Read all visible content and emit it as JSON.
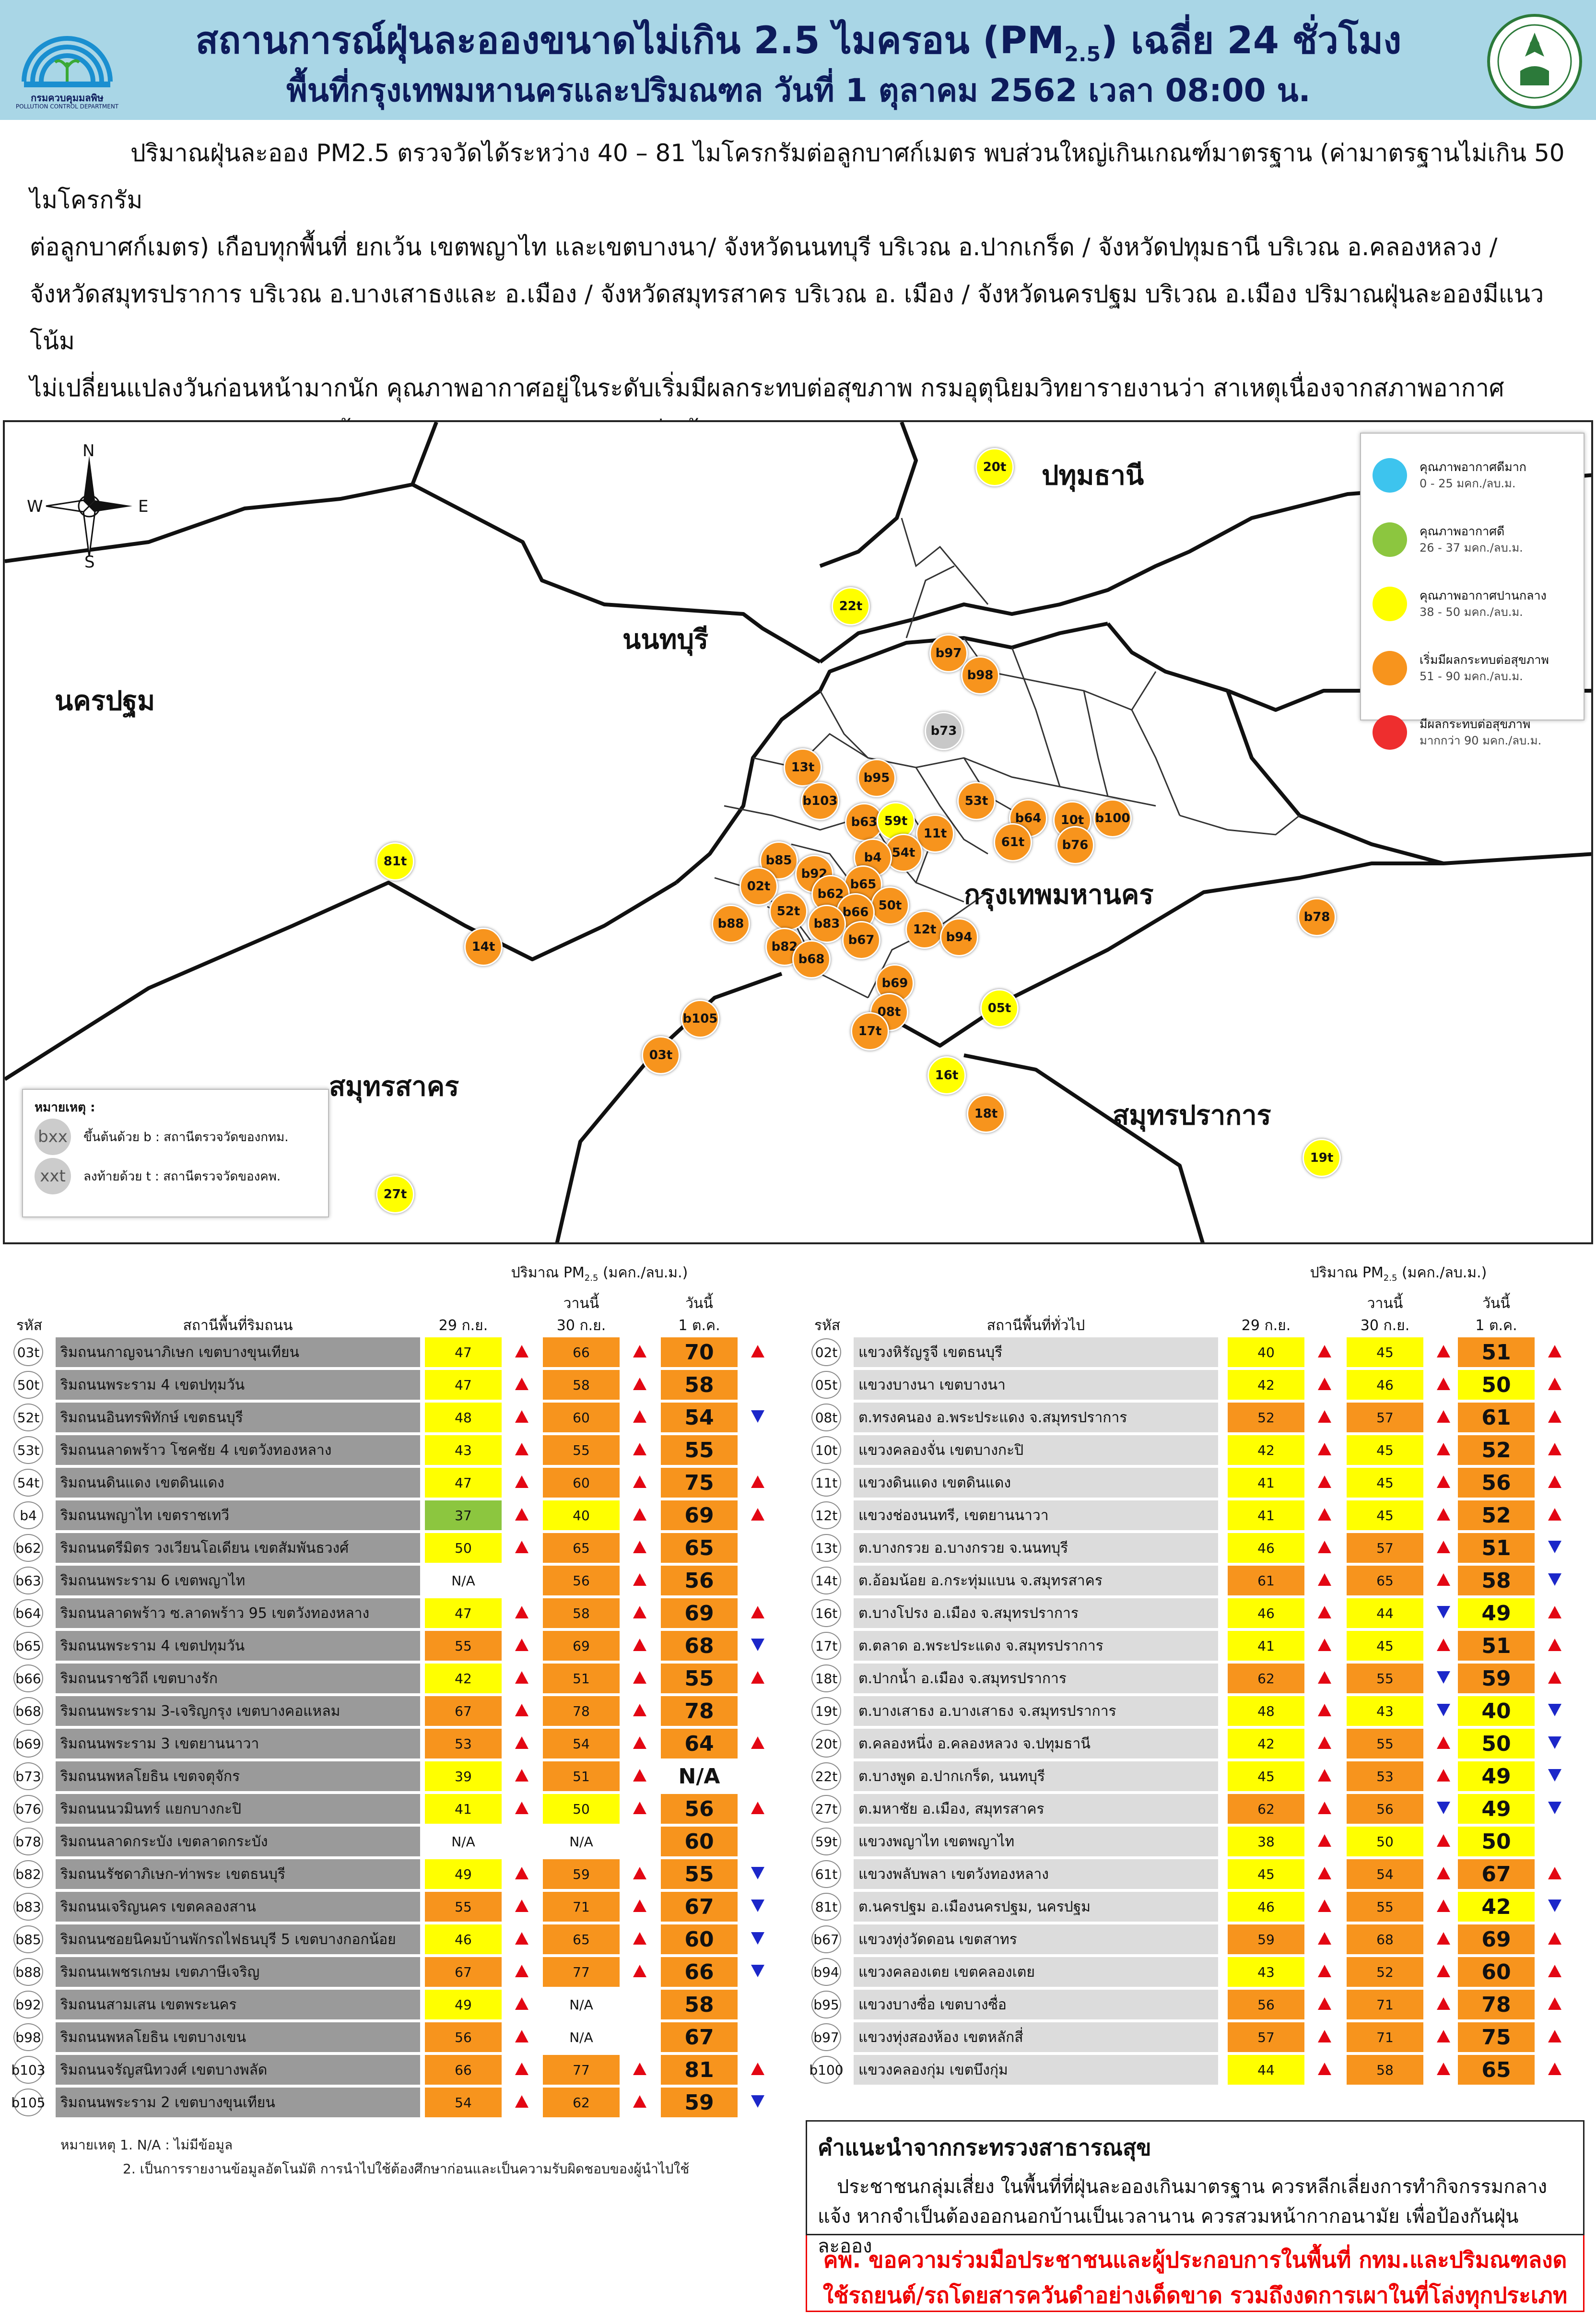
{
  "header": {
    "title_pre": "สถานการณ์ฝุ่นละอองขนาดไม่เกิน 2.5 ไมครอน (PM",
    "title_sub": "2.5",
    "title_post": ") เฉลี่ย 24 ชั่วโมง",
    "subtitle": "พื้นที่กรุงเทพมหานครและปริมณฑล วันที่ 1 ตุลาคม 2562 เวลา 08:00 น.",
    "left_logo_text": "กรมควบคุมมลพิษ",
    "left_logo_subtext": "POLLUTION CONTROL DEPARTMENT"
  },
  "intro_lines": [
    "ปริมาณฝุ่นละออง PM2.5 ตรวจวัดได้ระหว่าง 40 – 81 ไมโครกรัมต่อลูกบาศก์เมตร พบส่วนใหญ่เกินเกณฑ์มาตรฐาน (ค่ามาตรฐานไม่เกิน 50 ไมโครกรัม",
    "ต่อลูกบาศก์เมตร) เกือบทุกพื้นที่ ยกเว้น เขตพญาไท และเขตบางนา/ จังหวัดนนทบุรี บริเวณ อ.ปากเกร็ด / จังหวัดปทุมธานี บริเวณ อ.คลองหลวง /",
    "จังหวัดสมุทรปราการ บริเวณ อ.บางเสาธงและ อ.เมือง / จังหวัดสมุทรสาคร บริเวณ อ. เมือง / จังหวัดนครปฐม บริเวณ อ.เมือง ปริมาณฝุ่นละอองมีแนวโน้ม",
    "ไม่เปลี่ยนแปลงวันก่อนหน้ามากนัก คุณภาพอากาศอยู่ในระดับเริ่มมีผลกระทบต่อสุขภาพ กรมอุตุนิยมวิทยารายงานว่า สาเหตุเนื่องจากสภาพอากาศ",
    "ช่วงเช้าลมสงบ อากาศมีความชื้นสูง จึงทำให้ฝุ่นละอองสะสมเพิ่มขึ้น"
  ],
  "map": {
    "compass": {
      "n": "N",
      "s": "S",
      "e": "E",
      "w": "W"
    },
    "labels": {
      "pathum": "ปทุมธานี",
      "nonthaburi": "นนทบุรี",
      "nakhonpathom": "นครปฐม",
      "bangkok": "กรุงเทพมหานคร",
      "samutsakhon": "สมุทรสาคร",
      "samutprakan": "สมุทรปราการ"
    },
    "legend": [
      {
        "label": "คุณภาพอากาศดีมาก",
        "range": "0 - 25 มคก./ลบ.ม.",
        "color": "#3dc4ee"
      },
      {
        "label": "คุณภาพอากาศดี",
        "range": "26 - 37 มคก./ลบ.ม.",
        "color": "#8cc63f"
      },
      {
        "label": "คุณภาพอากาศปานกลาง",
        "range": "38 - 50 มคก./ลบ.ม.",
        "color": "#ffff00"
      },
      {
        "label": "เริ่มมีผลกระทบต่อสุขภาพ",
        "range": "51 - 90 มคก./ลบ.ม.",
        "color": "#f7941d"
      },
      {
        "label": "มีผลกระทบต่อสุขภาพ",
        "range": "มากกว่า 90 มคก./ลบ.ม.",
        "color": "#ee2e2e"
      }
    ],
    "note": {
      "title": "หมายเหตุ :",
      "items": [
        {
          "sym": "bxx",
          "text": "ขึ้นต้นด้วย b : สถานีตรวจวัดของกทม."
        },
        {
          "sym": "xxt",
          "text": "ลงท้ายด้วย t : สถานีตรวจวัดของคพ."
        }
      ]
    },
    "stations": [
      {
        "id": "20t",
        "level": "yellow"
      },
      {
        "id": "22t",
        "level": "yellow"
      },
      {
        "id": "b97",
        "level": "orange"
      },
      {
        "id": "b98",
        "level": "orange"
      },
      {
        "id": "b73",
        "level": "gray"
      },
      {
        "id": "13t",
        "level": "orange"
      },
      {
        "id": "b95",
        "level": "orange"
      },
      {
        "id": "b103",
        "level": "orange"
      },
      {
        "id": "53t",
        "level": "orange"
      },
      {
        "id": "b63",
        "level": "orange"
      },
      {
        "id": "59t",
        "level": "yellow"
      },
      {
        "id": "11t",
        "level": "orange"
      },
      {
        "id": "b64",
        "level": "orange"
      },
      {
        "id": "10t",
        "level": "orange"
      },
      {
        "id": "b100",
        "level": "orange"
      },
      {
        "id": "61t",
        "level": "orange"
      },
      {
        "id": "b76",
        "level": "orange"
      },
      {
        "id": "54t",
        "level": "orange"
      },
      {
        "id": "b4",
        "level": "orange"
      },
      {
        "id": "b85",
        "level": "orange"
      },
      {
        "id": "b92",
        "level": "orange"
      },
      {
        "id": "02t",
        "level": "orange"
      },
      {
        "id": "b65",
        "level": "orange"
      },
      {
        "id": "b62",
        "level": "orange"
      },
      {
        "id": "50t",
        "level": "orange"
      },
      {
        "id": "52t",
        "level": "orange"
      },
      {
        "id": "b66",
        "level": "orange"
      },
      {
        "id": "b88",
        "level": "orange"
      },
      {
        "id": "b83",
        "level": "orange"
      },
      {
        "id": "12t",
        "level": "orange"
      },
      {
        "id": "b94",
        "level": "orange"
      },
      {
        "id": "b67",
        "level": "orange"
      },
      {
        "id": "b82",
        "level": "orange"
      },
      {
        "id": "b68",
        "level": "orange"
      },
      {
        "id": "b78",
        "level": "orange"
      },
      {
        "id": "81t",
        "level": "yellow"
      },
      {
        "id": "14t",
        "level": "orange"
      },
      {
        "id": "b69",
        "level": "orange"
      },
      {
        "id": "08t",
        "level": "orange"
      },
      {
        "id": "05t",
        "level": "yellow"
      },
      {
        "id": "b105",
        "level": "orange"
      },
      {
        "id": "17t",
        "level": "orange"
      },
      {
        "id": "03t",
        "level": "orange"
      },
      {
        "id": "16t",
        "level": "yellow"
      },
      {
        "id": "18t",
        "level": "orange"
      },
      {
        "id": "19t",
        "level": "yellow"
      },
      {
        "id": "27t",
        "level": "yellow"
      }
    ]
  },
  "table_head": {
    "unit_pre": "ปริมาณ PM",
    "unit_sub": "2.5",
    "unit_post": " (มคก./ลบ.ม.)",
    "code": "รหัส",
    "left_station": "สถานีพื้นที่ริมถนน",
    "right_station": "สถานีพื้นที่ทั่วไป",
    "d1": "29 ก.ย.",
    "d2_top": "วานนี้",
    "d2": "30 ก.ย.",
    "d3_top": "วันนี้",
    "d3": "1 ต.ค."
  },
  "left_rows": [
    {
      "code": "03t",
      "name": "ริมถนนกาญจนาภิเษก เขตบางขุนเทียน",
      "v1": "47",
      "c1": "y",
      "t1": "up",
      "v2": "66",
      "c2": "o",
      "t2": "up",
      "v3": "70",
      "c3": "o",
      "t3": "up"
    },
    {
      "code": "50t",
      "name": "ริมถนนพระราม 4 เขตปทุมวัน",
      "v1": "47",
      "c1": "y",
      "t1": "up",
      "v2": "58",
      "c2": "o",
      "t2": "up",
      "v3": "58",
      "c3": "o",
      "t3": ""
    },
    {
      "code": "52t",
      "name": "ริมถนนอินทรพิทักษ์ เขตธนบุรี",
      "v1": "48",
      "c1": "y",
      "t1": "up",
      "v2": "60",
      "c2": "o",
      "t2": "up",
      "v3": "54",
      "c3": "o",
      "t3": "dn"
    },
    {
      "code": "53t",
      "name": "ริมถนนลาดพร้าว โชคชัย 4 เขตวังทองหลาง",
      "v1": "43",
      "c1": "y",
      "t1": "up",
      "v2": "55",
      "c2": "o",
      "t2": "up",
      "v3": "55",
      "c3": "o",
      "t3": ""
    },
    {
      "code": "54t",
      "name": "ริมถนนดินแดง เขตดินแดง",
      "v1": "47",
      "c1": "y",
      "t1": "up",
      "v2": "60",
      "c2": "o",
      "t2": "up",
      "v3": "75",
      "c3": "o",
      "t3": "up"
    },
    {
      "code": "b4",
      "name": "ริมถนนพญาไท เขตราชเทวี",
      "v1": "37",
      "c1": "g",
      "t1": "up",
      "v2": "40",
      "c2": "y",
      "t2": "up",
      "v3": "69",
      "c3": "o",
      "t3": "up"
    },
    {
      "code": "b62",
      "name": "ริมถนนตรีมิตร วงเวียนโอเดียน เขตสัมพันธวงศ์",
      "v1": "50",
      "c1": "y",
      "t1": "up",
      "v2": "65",
      "c2": "o",
      "t2": "up",
      "v3": "65",
      "c3": "o",
      "t3": ""
    },
    {
      "code": "b63",
      "name": "ริมถนนพระราม 6 เขตพญาไท",
      "v1": "N/A",
      "c1": "n",
      "t1": "",
      "v2": "56",
      "c2": "o",
      "t2": "up",
      "v3": "56",
      "c3": "o",
      "t3": ""
    },
    {
      "code": "b64",
      "name": "ริมถนนลาดพร้าว ซ.ลาดพร้าว 95 เขตวังทองหลาง",
      "v1": "47",
      "c1": "y",
      "t1": "up",
      "v2": "58",
      "c2": "o",
      "t2": "up",
      "v3": "69",
      "c3": "o",
      "t3": "up"
    },
    {
      "code": "b65",
      "name": "ริมถนนพระราม 4 เขตปทุมวัน",
      "v1": "55",
      "c1": "o",
      "t1": "up",
      "v2": "69",
      "c2": "o",
      "t2": "up",
      "v3": "68",
      "c3": "o",
      "t3": "dn"
    },
    {
      "code": "b66",
      "name": "ริมถนนราชวิถี เขตบางรัก",
      "v1": "42",
      "c1": "y",
      "t1": "up",
      "v2": "51",
      "c2": "o",
      "t2": "up",
      "v3": "55",
      "c3": "o",
      "t3": "up"
    },
    {
      "code": "b68",
      "name": "ริมถนนพระราม 3-เจริญกรุง เขตบางคอแหลม",
      "v1": "67",
      "c1": "o",
      "t1": "up",
      "v2": "78",
      "c2": "o",
      "t2": "up",
      "v3": "78",
      "c3": "o",
      "t3": ""
    },
    {
      "code": "b69",
      "name": "ริมถนนพระราม 3 เขตยานนาวา",
      "v1": "53",
      "c1": "o",
      "t1": "up",
      "v2": "54",
      "c2": "o",
      "t2": "up",
      "v3": "64",
      "c3": "o",
      "t3": "up"
    },
    {
      "code": "b73",
      "name": "ริมถนนพหลโยธิน เขตจตุจักร",
      "v1": "39",
      "c1": "y",
      "t1": "up",
      "v2": "51",
      "c2": "o",
      "t2": "up",
      "v3": "N/A",
      "c3": "n",
      "t3": ""
    },
    {
      "code": "b76",
      "name": "ริมถนนนวมินทร์ แยกบางกะปิ",
      "v1": "41",
      "c1": "y",
      "t1": "up",
      "v2": "50",
      "c2": "y",
      "t2": "up",
      "v3": "56",
      "c3": "o",
      "t3": "up"
    },
    {
      "code": "b78",
      "name": "ริมถนนลาดกระบัง เขตลาดกระบัง",
      "v1": "N/A",
      "c1": "n",
      "t1": "",
      "v2": "N/A",
      "c2": "n",
      "t2": "",
      "v3": "60",
      "c3": "o",
      "t3": ""
    },
    {
      "code": "b82",
      "name": "ริมถนนรัชดาภิเษก-ท่าพระ เขตธนบุรี",
      "v1": "49",
      "c1": "y",
      "t1": "up",
      "v2": "59",
      "c2": "o",
      "t2": "up",
      "v3": "55",
      "c3": "o",
      "t3": "dn"
    },
    {
      "code": "b83",
      "name": "ริมถนนเจริญนคร เขตคลองสาน",
      "v1": "55",
      "c1": "o",
      "t1": "up",
      "v2": "71",
      "c2": "o",
      "t2": "up",
      "v3": "67",
      "c3": "o",
      "t3": "dn"
    },
    {
      "code": "b85",
      "name": "ริมถนนซอยนิคมบ้านพักรถไฟธนบุรี 5 เขตบางกอกน้อย",
      "v1": "46",
      "c1": "y",
      "t1": "up",
      "v2": "65",
      "c2": "o",
      "t2": "up",
      "v3": "60",
      "c3": "o",
      "t3": "dn"
    },
    {
      "code": "b88",
      "name": "ริมถนนเพชรเกษม เขตภาษีเจริญ",
      "v1": "67",
      "c1": "o",
      "t1": "up",
      "v2": "77",
      "c2": "o",
      "t2": "up",
      "v3": "66",
      "c3": "o",
      "t3": "dn"
    },
    {
      "code": "b92",
      "name": "ริมถนนสามเสน เขตพระนคร",
      "v1": "49",
      "c1": "y",
      "t1": "up",
      "v2": "N/A",
      "c2": "n",
      "t2": "",
      "v3": "58",
      "c3": "o",
      "t3": ""
    },
    {
      "code": "b98",
      "name": "ริมถนนพหลโยธิน เขตบางเขน",
      "v1": "56",
      "c1": "o",
      "t1": "up",
      "v2": "N/A",
      "c2": "n",
      "t2": "",
      "v3": "67",
      "c3": "o",
      "t3": ""
    },
    {
      "code": "b103",
      "name": "ริมถนนจรัญสนิทวงศ์ เขตบางพลัด",
      "v1": "66",
      "c1": "o",
      "t1": "up",
      "v2": "77",
      "c2": "o",
      "t2": "up",
      "v3": "81",
      "c3": "o",
      "t3": "up"
    },
    {
      "code": "b105",
      "name": "ริมถนนพระราม 2 เขตบางขุนเทียน",
      "v1": "54",
      "c1": "o",
      "t1": "up",
      "v2": "62",
      "c2": "o",
      "t2": "up",
      "v3": "59",
      "c3": "o",
      "t3": "dn"
    }
  ],
  "right_rows": [
    {
      "code": "02t",
      "name": "แขวงหิรัญรูจี เขตธนบุรี",
      "v1": "40",
      "c1": "y",
      "t1": "up",
      "v2": "45",
      "c2": "y",
      "t2": "up",
      "v3": "51",
      "c3": "o",
      "t3": "up"
    },
    {
      "code": "05t",
      "name": "แขวงบางนา เขตบางนา",
      "v1": "42",
      "c1": "y",
      "t1": "up",
      "v2": "46",
      "c2": "y",
      "t2": "up",
      "v3": "50",
      "c3": "y",
      "t3": "up"
    },
    {
      "code": "08t",
      "name": "ต.ทรงคนอง อ.พระประแดง จ.สมุทรปราการ",
      "v1": "52",
      "c1": "o",
      "t1": "up",
      "v2": "57",
      "c2": "o",
      "t2": "up",
      "v3": "61",
      "c3": "o",
      "t3": "up"
    },
    {
      "code": "10t",
      "name": "แขวงคลองจั่น เขตบางกะปิ",
      "v1": "42",
      "c1": "y",
      "t1": "up",
      "v2": "45",
      "c2": "y",
      "t2": "up",
      "v3": "52",
      "c3": "o",
      "t3": "up"
    },
    {
      "code": "11t",
      "name": "แขวงดินแดง เขตดินแดง",
      "v1": "41",
      "c1": "y",
      "t1": "up",
      "v2": "45",
      "c2": "y",
      "t2": "up",
      "v3": "56",
      "c3": "o",
      "t3": "up"
    },
    {
      "code": "12t",
      "name": "แขวงช่องนนทรี, เขตยานนาวา",
      "v1": "41",
      "c1": "y",
      "t1": "up",
      "v2": "45",
      "c2": "y",
      "t2": "up",
      "v3": "52",
      "c3": "o",
      "t3": "up"
    },
    {
      "code": "13t",
      "name": "ต.บางกรวย อ.บางกรวย จ.นนทบุรี",
      "v1": "46",
      "c1": "y",
      "t1": "up",
      "v2": "57",
      "c2": "o",
      "t2": "up",
      "v3": "51",
      "c3": "o",
      "t3": "dn"
    },
    {
      "code": "14t",
      "name": "ต.อ้อมน้อย อ.กระทุ่มแบน จ.สมุทรสาคร",
      "v1": "61",
      "c1": "o",
      "t1": "up",
      "v2": "65",
      "c2": "o",
      "t2": "up",
      "v3": "58",
      "c3": "o",
      "t3": "dn"
    },
    {
      "code": "16t",
      "name": "ต.บางโปรง อ.เมือง จ.สมุทรปราการ",
      "v1": "46",
      "c1": "y",
      "t1": "up",
      "v2": "44",
      "c2": "y",
      "t2": "dn",
      "v3": "49",
      "c3": "y",
      "t3": "up"
    },
    {
      "code": "17t",
      "name": "ต.ตลาด อ.พระประแดง จ.สมุทรปราการ",
      "v1": "41",
      "c1": "y",
      "t1": "up",
      "v2": "45",
      "c2": "y",
      "t2": "up",
      "v3": "51",
      "c3": "o",
      "t3": "up"
    },
    {
      "code": "18t",
      "name": "ต.ปากน้ำ อ.เมือง จ.สมุทรปราการ",
      "v1": "62",
      "c1": "o",
      "t1": "up",
      "v2": "55",
      "c2": "o",
      "t2": "dn",
      "v3": "59",
      "c3": "o",
      "t3": "up"
    },
    {
      "code": "19t",
      "name": "ต.บางเสาธง อ.บางเสาธง จ.สมุทรปราการ",
      "v1": "48",
      "c1": "y",
      "t1": "up",
      "v2": "43",
      "c2": "y",
      "t2": "dn",
      "v3": "40",
      "c3": "y",
      "t3": "dn"
    },
    {
      "code": "20t",
      "name": "ต.คลองหนึ่ง อ.คลองหลวง จ.ปทุมธานี",
      "v1": "42",
      "c1": "y",
      "t1": "up",
      "v2": "55",
      "c2": "o",
      "t2": "up",
      "v3": "50",
      "c3": "y",
      "t3": "dn"
    },
    {
      "code": "22t",
      "name": "ต.บางพูด อ.ปากเกร็ด, นนทบุรี",
      "v1": "45",
      "c1": "y",
      "t1": "up",
      "v2": "53",
      "c2": "o",
      "t2": "up",
      "v3": "49",
      "c3": "y",
      "t3": "dn"
    },
    {
      "code": "27t",
      "name": "ต.มหาชัย อ.เมือง, สมุทรสาคร",
      "v1": "62",
      "c1": "o",
      "t1": "up",
      "v2": "56",
      "c2": "o",
      "t2": "dn",
      "v3": "49",
      "c3": "y",
      "t3": "dn"
    },
    {
      "code": "59t",
      "name": "แขวงพญาไท เขตพญาไท",
      "v1": "38",
      "c1": "y",
      "t1": "up",
      "v2": "50",
      "c2": "y",
      "t2": "up",
      "v3": "50",
      "c3": "y",
      "t3": ""
    },
    {
      "code": "61t",
      "name": "แขวงพลับพลา เขตวังทองหลาง",
      "v1": "45",
      "c1": "y",
      "t1": "up",
      "v2": "54",
      "c2": "o",
      "t2": "up",
      "v3": "67",
      "c3": "o",
      "t3": "up"
    },
    {
      "code": "81t",
      "name": "ต.นครปฐม อ.เมืองนครปฐม, นครปฐม",
      "v1": "46",
      "c1": "y",
      "t1": "up",
      "v2": "55",
      "c2": "o",
      "t2": "up",
      "v3": "42",
      "c3": "y",
      "t3": "dn"
    },
    {
      "code": "b67",
      "name": "แขวงทุ่งวัดดอน เขตสาทร",
      "v1": "59",
      "c1": "o",
      "t1": "up",
      "v2": "68",
      "c2": "o",
      "t2": "up",
      "v3": "69",
      "c3": "o",
      "t3": "up"
    },
    {
      "code": "b94",
      "name": "แขวงคลองเตย เขตคลองเตย",
      "v1": "43",
      "c1": "y",
      "t1": "up",
      "v2": "52",
      "c2": "o",
      "t2": "up",
      "v3": "60",
      "c3": "o",
      "t3": "up"
    },
    {
      "code": "b95",
      "name": "แขวงบางซื่อ เขตบางซื่อ",
      "v1": "56",
      "c1": "o",
      "t1": "up",
      "v2": "71",
      "c2": "o",
      "t2": "up",
      "v3": "78",
      "c3": "o",
      "t3": "up"
    },
    {
      "code": "b97",
      "name": "แขวงทุ่งสองห้อง เขตหลักสี่",
      "v1": "57",
      "c1": "o",
      "t1": "up",
      "v2": "71",
      "c2": "o",
      "t2": "up",
      "v3": "75",
      "c3": "o",
      "t3": "up"
    },
    {
      "code": "b100",
      "name": "แขวงคลองกุ่ม เขตบึงกุ่ม",
      "v1": "44",
      "c1": "y",
      "t1": "up",
      "v2": "58",
      "c2": "o",
      "t2": "up",
      "v3": "65",
      "c3": "o",
      "t3": "up"
    }
  ],
  "footnotes": {
    "n1": "หมายเหตุ 1. N/A : ไม่มีข้อมูล",
    "n2": "2. เป็นการรายงานข้อมูลอัตโนมัติ การนำไปใช้ต้องศึกษาก่อนและเป็นความรับผิดชอบของผู้นำไปใช้"
  },
  "advice": {
    "title": "คำแนะนำจากกระทรวงสาธารณสุข",
    "body": "ประชาชนกลุ่มเสี่ยง ในพื้นที่ที่ฝุ่นละอองเกินมาตรฐาน ควรหลีกเลี่ยงการทำกิจกรรมกลางแจ้ง หากจำเป็นต้องออกนอกบ้านเป็นเวลานาน ควรสวมหน้ากากอนามัย เพื่อป้องกันฝุ่นละออง",
    "request": "คพ. ขอความร่วมมือประชาชนและผู้ประกอบการในพื้นที่ กทม.และปริมณฑลงดใช้รถยนต์/รถโดยสารควันดำอย่างเด็ดขาด รวมถึงงดการเผาในที่โล่งทุกประเภท"
  },
  "colors": {
    "y": "#ffff00",
    "o": "#f7941d",
    "g": "#8cc63f",
    "n": "#ffffff",
    "gray": "#c8c8c8",
    "yellow": "#ffff00",
    "orange": "#f7941d",
    "leftname": "#9a9a9a",
    "rightname": "#dcdcdc"
  }
}
